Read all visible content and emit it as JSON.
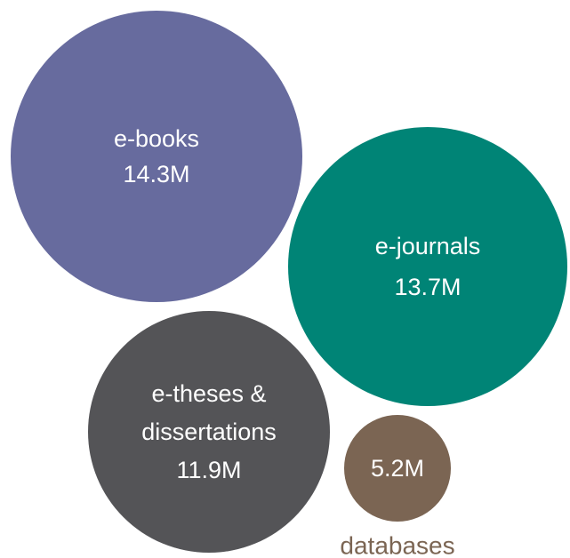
{
  "chart_data": {
    "type": "bubble",
    "title": "",
    "series": [
      {
        "category": "e-books",
        "label_lines": [
          "e-books"
        ],
        "value": 14.3,
        "value_label": "14.3M",
        "color": "#676b9e"
      },
      {
        "category": "e-journals",
        "label_lines": [
          "e-journals"
        ],
        "value": 13.7,
        "value_label": "13.7M",
        "color": "#008476"
      },
      {
        "category": "e-theses & dissertations",
        "label_lines": [
          "e-theses &",
          "dissertations"
        ],
        "value": 11.9,
        "value_label": "11.9M",
        "color": "#545457"
      },
      {
        "category": "databases",
        "label_lines": [],
        "outside_label": "databases",
        "value": 5.2,
        "value_label": "5.2M",
        "color": "#7b6553"
      }
    ],
    "units": "M",
    "legend": "none"
  }
}
